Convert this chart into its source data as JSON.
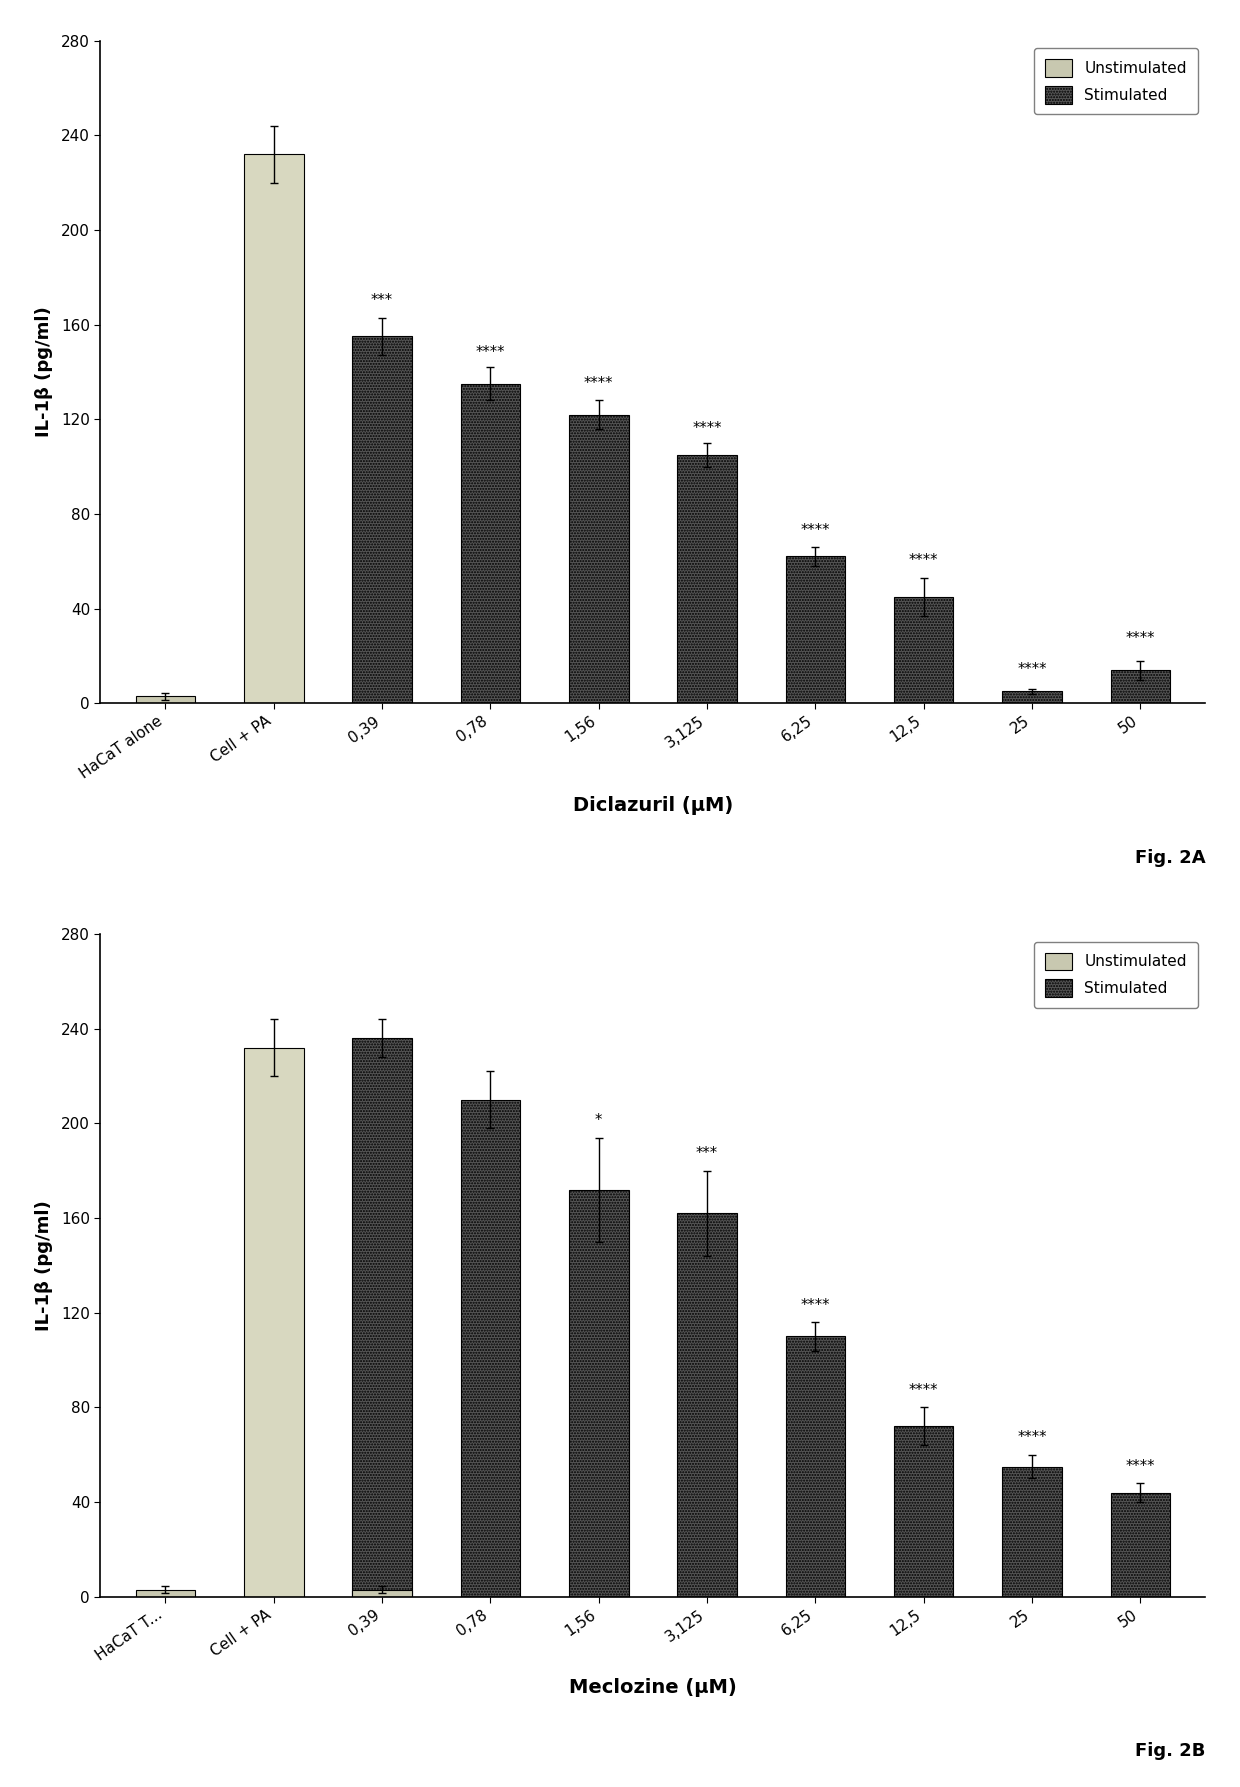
{
  "fig2A": {
    "xlabel": "Diclazuril (μM)",
    "ylabel": "IL-1β (pg/ml)",
    "fig_label": "Fig. 2A",
    "ylim": [
      0,
      280
    ],
    "yticks": [
      0,
      40,
      80,
      120,
      160,
      200,
      240,
      280
    ],
    "categories": [
      "HaCaT alone",
      "Cell + PA",
      "0,39",
      "0,78",
      "1,56",
      "3,125",
      "6,25",
      "12,5",
      "25",
      "50"
    ],
    "unstim_values": [
      3,
      0,
      0,
      0,
      0,
      0,
      0,
      0,
      0,
      0
    ],
    "stim_values": [
      0,
      232,
      155,
      135,
      122,
      105,
      62,
      45,
      5,
      14
    ],
    "unstim_errors": [
      1.5,
      0,
      0,
      0,
      0,
      0,
      0,
      0,
      0,
      0
    ],
    "stim_errors": [
      0,
      12,
      8,
      7,
      6,
      5,
      4,
      8,
      1,
      4
    ],
    "significance": [
      "",
      "",
      "***",
      "****",
      "****",
      "****",
      "****",
      "****",
      "****",
      "****"
    ],
    "sig_y": [
      0,
      0,
      165,
      143,
      130,
      111,
      68,
      55,
      9,
      22
    ],
    "bar_width": 0.55
  },
  "fig2B": {
    "xlabel": "Meclozine (μM)",
    "ylabel": "IL-1β (pg/ml)",
    "fig_label": "Fig. 2B",
    "ylim": [
      0,
      280
    ],
    "yticks": [
      0,
      40,
      80,
      120,
      160,
      200,
      240,
      280
    ],
    "categories": [
      "HaCaT T...",
      "Cell + PA",
      "0,39",
      "0,78",
      "1,56",
      "3,125",
      "6,25",
      "12,5",
      "25",
      "50"
    ],
    "unstim_values": [
      3,
      0,
      3,
      0,
      0,
      0,
      0,
      0,
      0,
      0
    ],
    "stim_values": [
      0,
      232,
      236,
      210,
      172,
      162,
      110,
      72,
      55,
      44
    ],
    "unstim_errors": [
      1.5,
      0,
      1.5,
      0,
      0,
      0,
      0,
      0,
      0,
      0
    ],
    "stim_errors": [
      0,
      12,
      8,
      12,
      22,
      18,
      6,
      8,
      5,
      4
    ],
    "significance": [
      "",
      "",
      "",
      "",
      "*",
      "***",
      "****",
      "****",
      "****",
      "****"
    ],
    "sig_y": [
      0,
      0,
      0,
      0,
      196,
      182,
      118,
      82,
      62,
      50
    ],
    "bar_width": 0.55
  },
  "legend_unstim_label": "Unstimulated",
  "legend_stim_label": "Stimulated",
  "unstim_color": "#c8c8b0",
  "stim_color": "#555555",
  "cellpa_color": "#d8d8c0"
}
